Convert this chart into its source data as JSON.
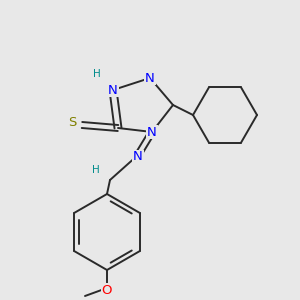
{
  "background_color": "#e8e8e8",
  "bond_color": "#2a2a2a",
  "N_color": "#0000ff",
  "S_color": "#808000",
  "O_color": "#ff0000",
  "H_color": "#008b8b",
  "figsize": [
    3.0,
    3.0
  ],
  "dpi": 100,
  "xlim": [
    0,
    300
  ],
  "ylim": [
    0,
    300
  ]
}
